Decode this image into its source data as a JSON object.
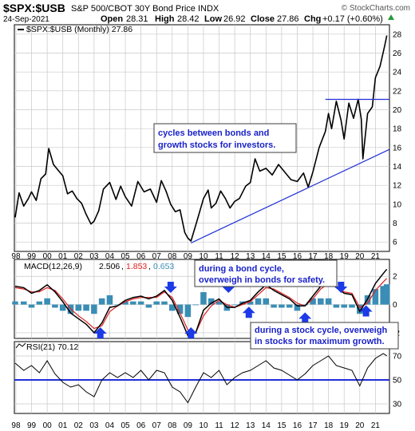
{
  "header": {
    "symbol": "$SPX:$USB",
    "description": "S&P 500/CBOT 30Y Bond Price INDX",
    "watermark": "© StockCharts.com",
    "date": "24-Sep-2021",
    "open_label": "Open",
    "open_value": "28.31",
    "high_label": "High",
    "high_value": "28.42",
    "low_label": "Low",
    "low_value": "26.92",
    "close_label": "Close",
    "close_value": "27.86",
    "chg_label": "Chg",
    "chg_value": "+0.17 (+0.60%)"
  },
  "colors": {
    "price": "#000000",
    "trend": "#1f2fd6",
    "macd": "#000000",
    "signal": "#e02020",
    "histogram": "#3a8db5",
    "annotation_text": "#1a22c8",
    "arrow": "#1c3ae6",
    "grid": "#c8c8c8"
  },
  "annotations": {
    "cycles": "cycles between bonds and\ngrowth stocks for investors.",
    "bond_cycle": "during a bond cycle,\noverweigh in bonds for safety.",
    "stock_cycle": "during a stock cycle, overweigh\nin stocks for maximum growth."
  },
  "chart_data": [
    {
      "type": "line",
      "panel": "price",
      "legend": "$SPX:$USB (Monthly) 27.86",
      "ylim": [
        5,
        29
      ],
      "yticks": [
        6,
        8,
        10,
        12,
        14,
        16,
        18,
        20,
        22,
        24,
        26,
        28
      ],
      "xlim": [
        1997.9,
        2021.9
      ],
      "x_tick_labels": [
        "98",
        "99",
        "00",
        "01",
        "02",
        "03",
        "04",
        "05",
        "06",
        "07",
        "08",
        "09",
        "10",
        "11",
        "12",
        "13",
        "14",
        "15",
        "16",
        "17",
        "18",
        "19",
        "20",
        "21"
      ],
      "series": [
        {
          "name": "$SPX:$USB",
          "x": [
            1997.95,
            1998.2,
            1998.5,
            1998.8,
            1999.0,
            1999.3,
            1999.6,
            1999.9,
            2000.1,
            2000.4,
            2000.7,
            2001.0,
            2001.3,
            2001.6,
            2001.9,
            2002.2,
            2002.5,
            2002.8,
            2003.0,
            2003.3,
            2003.6,
            2004.0,
            2004.4,
            2004.7,
            2005.0,
            2005.4,
            2005.8,
            2006.2,
            2006.6,
            2007.0,
            2007.3,
            2007.6,
            2007.9,
            2008.2,
            2008.5,
            2008.8,
            2009.0,
            2009.2,
            2009.6,
            2010.0,
            2010.3,
            2010.5,
            2010.8,
            2011.1,
            2011.4,
            2011.7,
            2012.0,
            2012.3,
            2012.7,
            2013.0,
            2013.3,
            2013.6,
            2014.0,
            2014.4,
            2014.8,
            2015.2,
            2015.6,
            2016.0,
            2016.4,
            2016.7,
            2017.0,
            2017.4,
            2017.8,
            2018.0,
            2018.2,
            2018.5,
            2018.8,
            2019.0,
            2019.3,
            2019.6,
            2019.9,
            2020.1,
            2020.2,
            2020.5,
            2020.8,
            2021.0,
            2021.3,
            2021.6,
            2021.73
          ],
          "values": [
            8.6,
            11.2,
            9.8,
            10.6,
            11.3,
            10.4,
            12.7,
            13.2,
            15.9,
            14.2,
            13.6,
            13.0,
            11.1,
            11.4,
            10.6,
            10.1,
            8.9,
            7.9,
            8.2,
            9.3,
            11.6,
            12.3,
            10.5,
            11.9,
            10.8,
            9.8,
            12.4,
            11.3,
            11.6,
            10.2,
            12.5,
            11.4,
            10.0,
            9.2,
            9.4,
            7.0,
            6.4,
            6.1,
            8.3,
            10.6,
            11.5,
            9.6,
            10.1,
            11.4,
            10.6,
            9.6,
            10.3,
            10.6,
            11.9,
            12.3,
            14.8,
            13.5,
            13.8,
            13.1,
            14.2,
            13.4,
            12.6,
            12.4,
            13.3,
            11.8,
            13.4,
            16.0,
            17.7,
            19.6,
            18.0,
            20.9,
            18.9,
            16.9,
            20.7,
            19.1,
            21.1,
            19.0,
            14.8,
            19.6,
            20.3,
            23.4,
            24.6,
            26.8,
            27.86
          ]
        },
        {
          "name": "trend support",
          "x": [
            2009.2,
            2021.9
          ],
          "values": [
            5.9,
            15.8
          ]
        },
        {
          "name": "resistance",
          "x": [
            2017.8,
            2021.9
          ],
          "values": [
            21.1,
            21.1
          ]
        }
      ]
    },
    {
      "type": "line",
      "panel": "macd",
      "legend_prefix": "MACD(12,26,9)",
      "legend_values": [
        "2.506",
        "1.853",
        "0.653"
      ],
      "ylim": [
        -2.4,
        3.2
      ],
      "yticks": [
        -2,
        0,
        2
      ],
      "x": [
        1997.95,
        1998.5,
        1999.0,
        1999.5,
        2000.0,
        2000.5,
        2001.0,
        2001.5,
        2002.0,
        2002.5,
        2003.0,
        2003.5,
        2004.0,
        2004.5,
        2005.0,
        2005.5,
        2006.0,
        2006.5,
        2007.0,
        2007.5,
        2008.0,
        2008.5,
        2009.0,
        2009.5,
        2010.0,
        2010.5,
        2011.0,
        2011.5,
        2012.0,
        2012.5,
        2013.0,
        2013.5,
        2014.0,
        2014.5,
        2015.0,
        2015.5,
        2016.0,
        2016.5,
        2017.0,
        2017.5,
        2018.0,
        2018.5,
        2019.0,
        2019.5,
        2020.0,
        2020.5,
        2021.0,
        2021.5,
        2021.73
      ],
      "series": [
        {
          "name": "MACD",
          "values": [
            1.3,
            1.2,
            0.8,
            1.0,
            1.4,
            0.9,
            0.2,
            -0.6,
            -1.0,
            -1.4,
            -2.0,
            -1.3,
            -0.2,
            -0.1,
            0.3,
            0.5,
            0.6,
            0.4,
            0.6,
            1.0,
            0.3,
            -0.9,
            -2.2,
            -2.0,
            -0.4,
            0.1,
            0.4,
            -0.2,
            -0.2,
            0.1,
            0.3,
            0.9,
            1.4,
            1.0,
            0.7,
            0.4,
            -0.1,
            -0.1,
            0.6,
            1.3,
            1.7,
            1.2,
            0.8,
            0.7,
            -0.5,
            0.4,
            1.5,
            2.2,
            2.506
          ]
        },
        {
          "name": "Signal",
          "values": [
            1.2,
            1.1,
            0.9,
            0.9,
            1.2,
            1.0,
            0.4,
            -0.3,
            -0.8,
            -1.2,
            -1.7,
            -1.5,
            -0.5,
            -0.1,
            0.2,
            0.4,
            0.5,
            0.5,
            0.5,
            0.9,
            0.5,
            -0.6,
            -1.8,
            -2.0,
            -0.8,
            -0.1,
            0.3,
            0.0,
            -0.2,
            0.0,
            0.2,
            0.7,
            1.2,
            1.1,
            0.8,
            0.5,
            0.1,
            -0.1,
            0.4,
            1.1,
            1.5,
            1.3,
            0.9,
            0.8,
            -0.2,
            0.1,
            1.0,
            1.6,
            1.853
          ]
        },
        {
          "name": "Histogram",
          "values": [
            0.1,
            0.1,
            -0.1,
            0.1,
            0.2,
            -0.1,
            -0.2,
            -0.3,
            -0.2,
            -0.2,
            -0.3,
            0.2,
            0.3,
            0.0,
            0.1,
            0.1,
            0.1,
            -0.1,
            0.1,
            0.1,
            -0.2,
            -0.3,
            -0.4,
            0.0,
            0.4,
            0.2,
            0.1,
            -0.2,
            0.0,
            0.1,
            0.1,
            0.2,
            0.2,
            -0.1,
            -0.1,
            -0.1,
            -0.2,
            0.0,
            0.2,
            0.2,
            0.2,
            -0.1,
            -0.1,
            -0.1,
            -0.3,
            0.3,
            0.5,
            0.6,
            0.653
          ]
        }
      ],
      "arrows_down_x": [
        2007.9,
        2011.6,
        2018.8
      ],
      "arrows_up_x": [
        2003.4,
        2009.2,
        2012.9,
        2016.5,
        2020.4
      ]
    },
    {
      "type": "line",
      "panel": "rsi",
      "legend": "RSI(21) 70.12",
      "ylim": [
        22,
        82
      ],
      "yticks": [
        30,
        50,
        70
      ],
      "x": [
        1997.95,
        1998.5,
        1999.0,
        1999.5,
        2000.0,
        2000.5,
        2001.0,
        2001.5,
        2002.0,
        2002.5,
        2003.0,
        2003.5,
        2004.0,
        2004.5,
        2005.0,
        2005.5,
        2006.0,
        2006.5,
        2007.0,
        2007.5,
        2008.0,
        2008.5,
        2009.0,
        2009.5,
        2010.0,
        2010.5,
        2011.0,
        2011.5,
        2012.0,
        2012.5,
        2013.0,
        2013.5,
        2014.0,
        2014.5,
        2015.0,
        2015.5,
        2016.0,
        2016.5,
        2017.0,
        2017.5,
        2018.0,
        2018.5,
        2019.0,
        2019.5,
        2020.0,
        2020.5,
        2021.0,
        2021.5,
        2021.73
      ],
      "series": [
        {
          "name": "RSI",
          "values": [
            64,
            58,
            62,
            56,
            66,
            55,
            48,
            44,
            46,
            40,
            36,
            50,
            56,
            52,
            56,
            52,
            58,
            50,
            58,
            56,
            44,
            40,
            31,
            44,
            56,
            52,
            58,
            46,
            52,
            56,
            58,
            62,
            66,
            60,
            58,
            54,
            50,
            55,
            62,
            66,
            70,
            62,
            60,
            58,
            45,
            60,
            68,
            72,
            70.12
          ]
        }
      ],
      "reference_line": 50
    }
  ]
}
